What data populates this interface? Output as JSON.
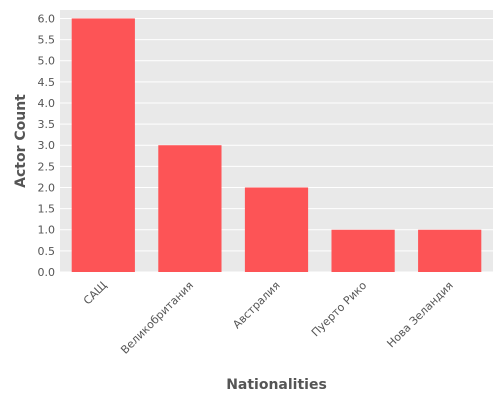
{
  "chart_data": {
    "type": "bar",
    "title": "",
    "xlabel": "Nationalities",
    "ylabel": "Actor Count",
    "categories": [
      "САЩ",
      "Великобритания",
      "Австралия",
      "Пуерто Рико",
      "Нова Зеландия"
    ],
    "values": [
      6.0,
      3.0,
      2.0,
      1.0,
      1.0
    ],
    "ylim": [
      0,
      6.2
    ],
    "yticks": [
      "0.0",
      "0.5",
      "1.0",
      "1.5",
      "2.0",
      "2.5",
      "3.0",
      "3.5",
      "4.0",
      "4.5",
      "5.0",
      "5.5",
      "6.0"
    ],
    "grid": true,
    "legend": "none",
    "colors": {
      "bar": "#fd5456",
      "background": "#e9e9e9",
      "grid": "#ffffff",
      "text": "#555555"
    }
  }
}
